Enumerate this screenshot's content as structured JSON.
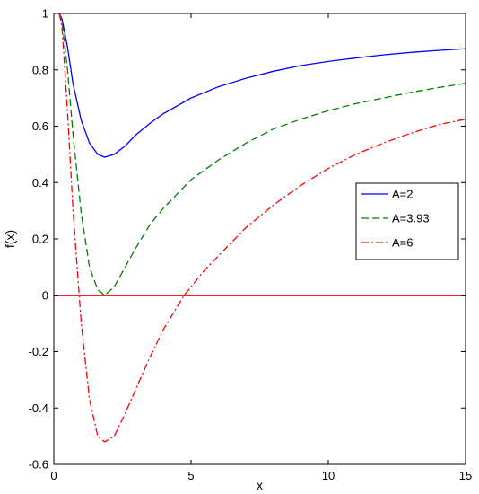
{
  "chart_data": {
    "type": "line",
    "xlabel": "x",
    "ylabel": "f(x)",
    "xlim": [
      0,
      15
    ],
    "ylim": [
      -0.6,
      1
    ],
    "xticks": [
      0,
      5,
      10,
      15
    ],
    "xtick_labels": [
      "0",
      "5",
      "10",
      "15"
    ],
    "yticks": [
      -0.6,
      -0.4,
      -0.2,
      0,
      0.2,
      0.4,
      0.6,
      0.8,
      1
    ],
    "ytick_labels": [
      "-0.6",
      "-0.4",
      "-0.2",
      "0",
      "0.2",
      "0.4",
      "0.6",
      "0.8",
      "1"
    ],
    "grid": false,
    "legend_position": "right",
    "series": [
      {
        "name": "A=2",
        "color": "#0000ff",
        "line_style": "solid",
        "x": [
          0.2,
          0.3,
          0.5,
          0.7,
          1.0,
          1.3,
          1.6,
          1.85,
          2.2,
          2.6,
          3.0,
          3.5,
          4.0,
          5.0,
          6.0,
          7.0,
          8.0,
          9.0,
          10.0,
          11.0,
          12.0,
          13.0,
          14.0,
          15.0
        ],
        "y": [
          1.0,
          0.98,
          0.88,
          0.75,
          0.62,
          0.54,
          0.5,
          0.49,
          0.5,
          0.53,
          0.57,
          0.61,
          0.645,
          0.7,
          0.74,
          0.77,
          0.795,
          0.815,
          0.83,
          0.842,
          0.853,
          0.862,
          0.869,
          0.875
        ]
      },
      {
        "name": "A=3.93",
        "color": "#008000",
        "line_style": "dashed",
        "x": [
          0.2,
          0.3,
          0.5,
          0.7,
          1.0,
          1.3,
          1.6,
          1.85,
          2.2,
          2.6,
          3.0,
          3.5,
          4.0,
          5.0,
          6.0,
          7.0,
          8.0,
          9.0,
          10.0,
          11.0,
          12.0,
          13.0,
          14.0,
          15.0
        ],
        "y": [
          1.0,
          0.97,
          0.8,
          0.57,
          0.29,
          0.1,
          0.02,
          0.0,
          0.03,
          0.1,
          0.17,
          0.25,
          0.31,
          0.41,
          0.48,
          0.54,
          0.59,
          0.625,
          0.655,
          0.68,
          0.7,
          0.72,
          0.737,
          0.752
        ]
      },
      {
        "name": "A=6",
        "color": "#ff0000",
        "line_style": "dashdot",
        "x": [
          0.2,
          0.3,
          0.5,
          0.7,
          1.0,
          1.3,
          1.6,
          1.85,
          2.2,
          2.6,
          3.0,
          3.5,
          4.0,
          4.75,
          5.5,
          6.0,
          7.0,
          8.0,
          9.0,
          10.0,
          11.0,
          12.0,
          13.0,
          14.0,
          15.0
        ],
        "y": [
          1.0,
          0.95,
          0.65,
          0.3,
          -0.1,
          -0.37,
          -0.5,
          -0.52,
          -0.5,
          -0.42,
          -0.33,
          -0.22,
          -0.12,
          0.0,
          0.09,
          0.14,
          0.24,
          0.32,
          0.39,
          0.45,
          0.5,
          0.54,
          0.575,
          0.605,
          0.625
        ]
      }
    ],
    "reference_line": {
      "y": 0,
      "color": "#ff0000"
    }
  }
}
